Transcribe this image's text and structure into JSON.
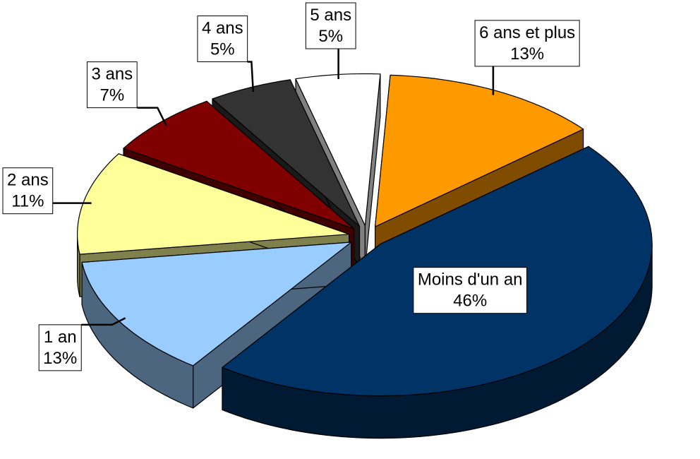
{
  "chart_data": {
    "type": "pie",
    "categories": [
      "Moins d'un an",
      "1 an",
      "2 ans",
      "3 ans",
      "4 ans",
      "5 ans",
      "6 ans et plus"
    ],
    "values": [
      46,
      13,
      11,
      7,
      5,
      5,
      13
    ],
    "value_labels": [
      "46%",
      "13%",
      "11%",
      "7%",
      "5%",
      "5%",
      "13%"
    ],
    "colors": [
      "#003366",
      "#99ccff",
      "#ffff99",
      "#800000",
      "#333333",
      "#ffffff",
      "#ff9900"
    ]
  }
}
